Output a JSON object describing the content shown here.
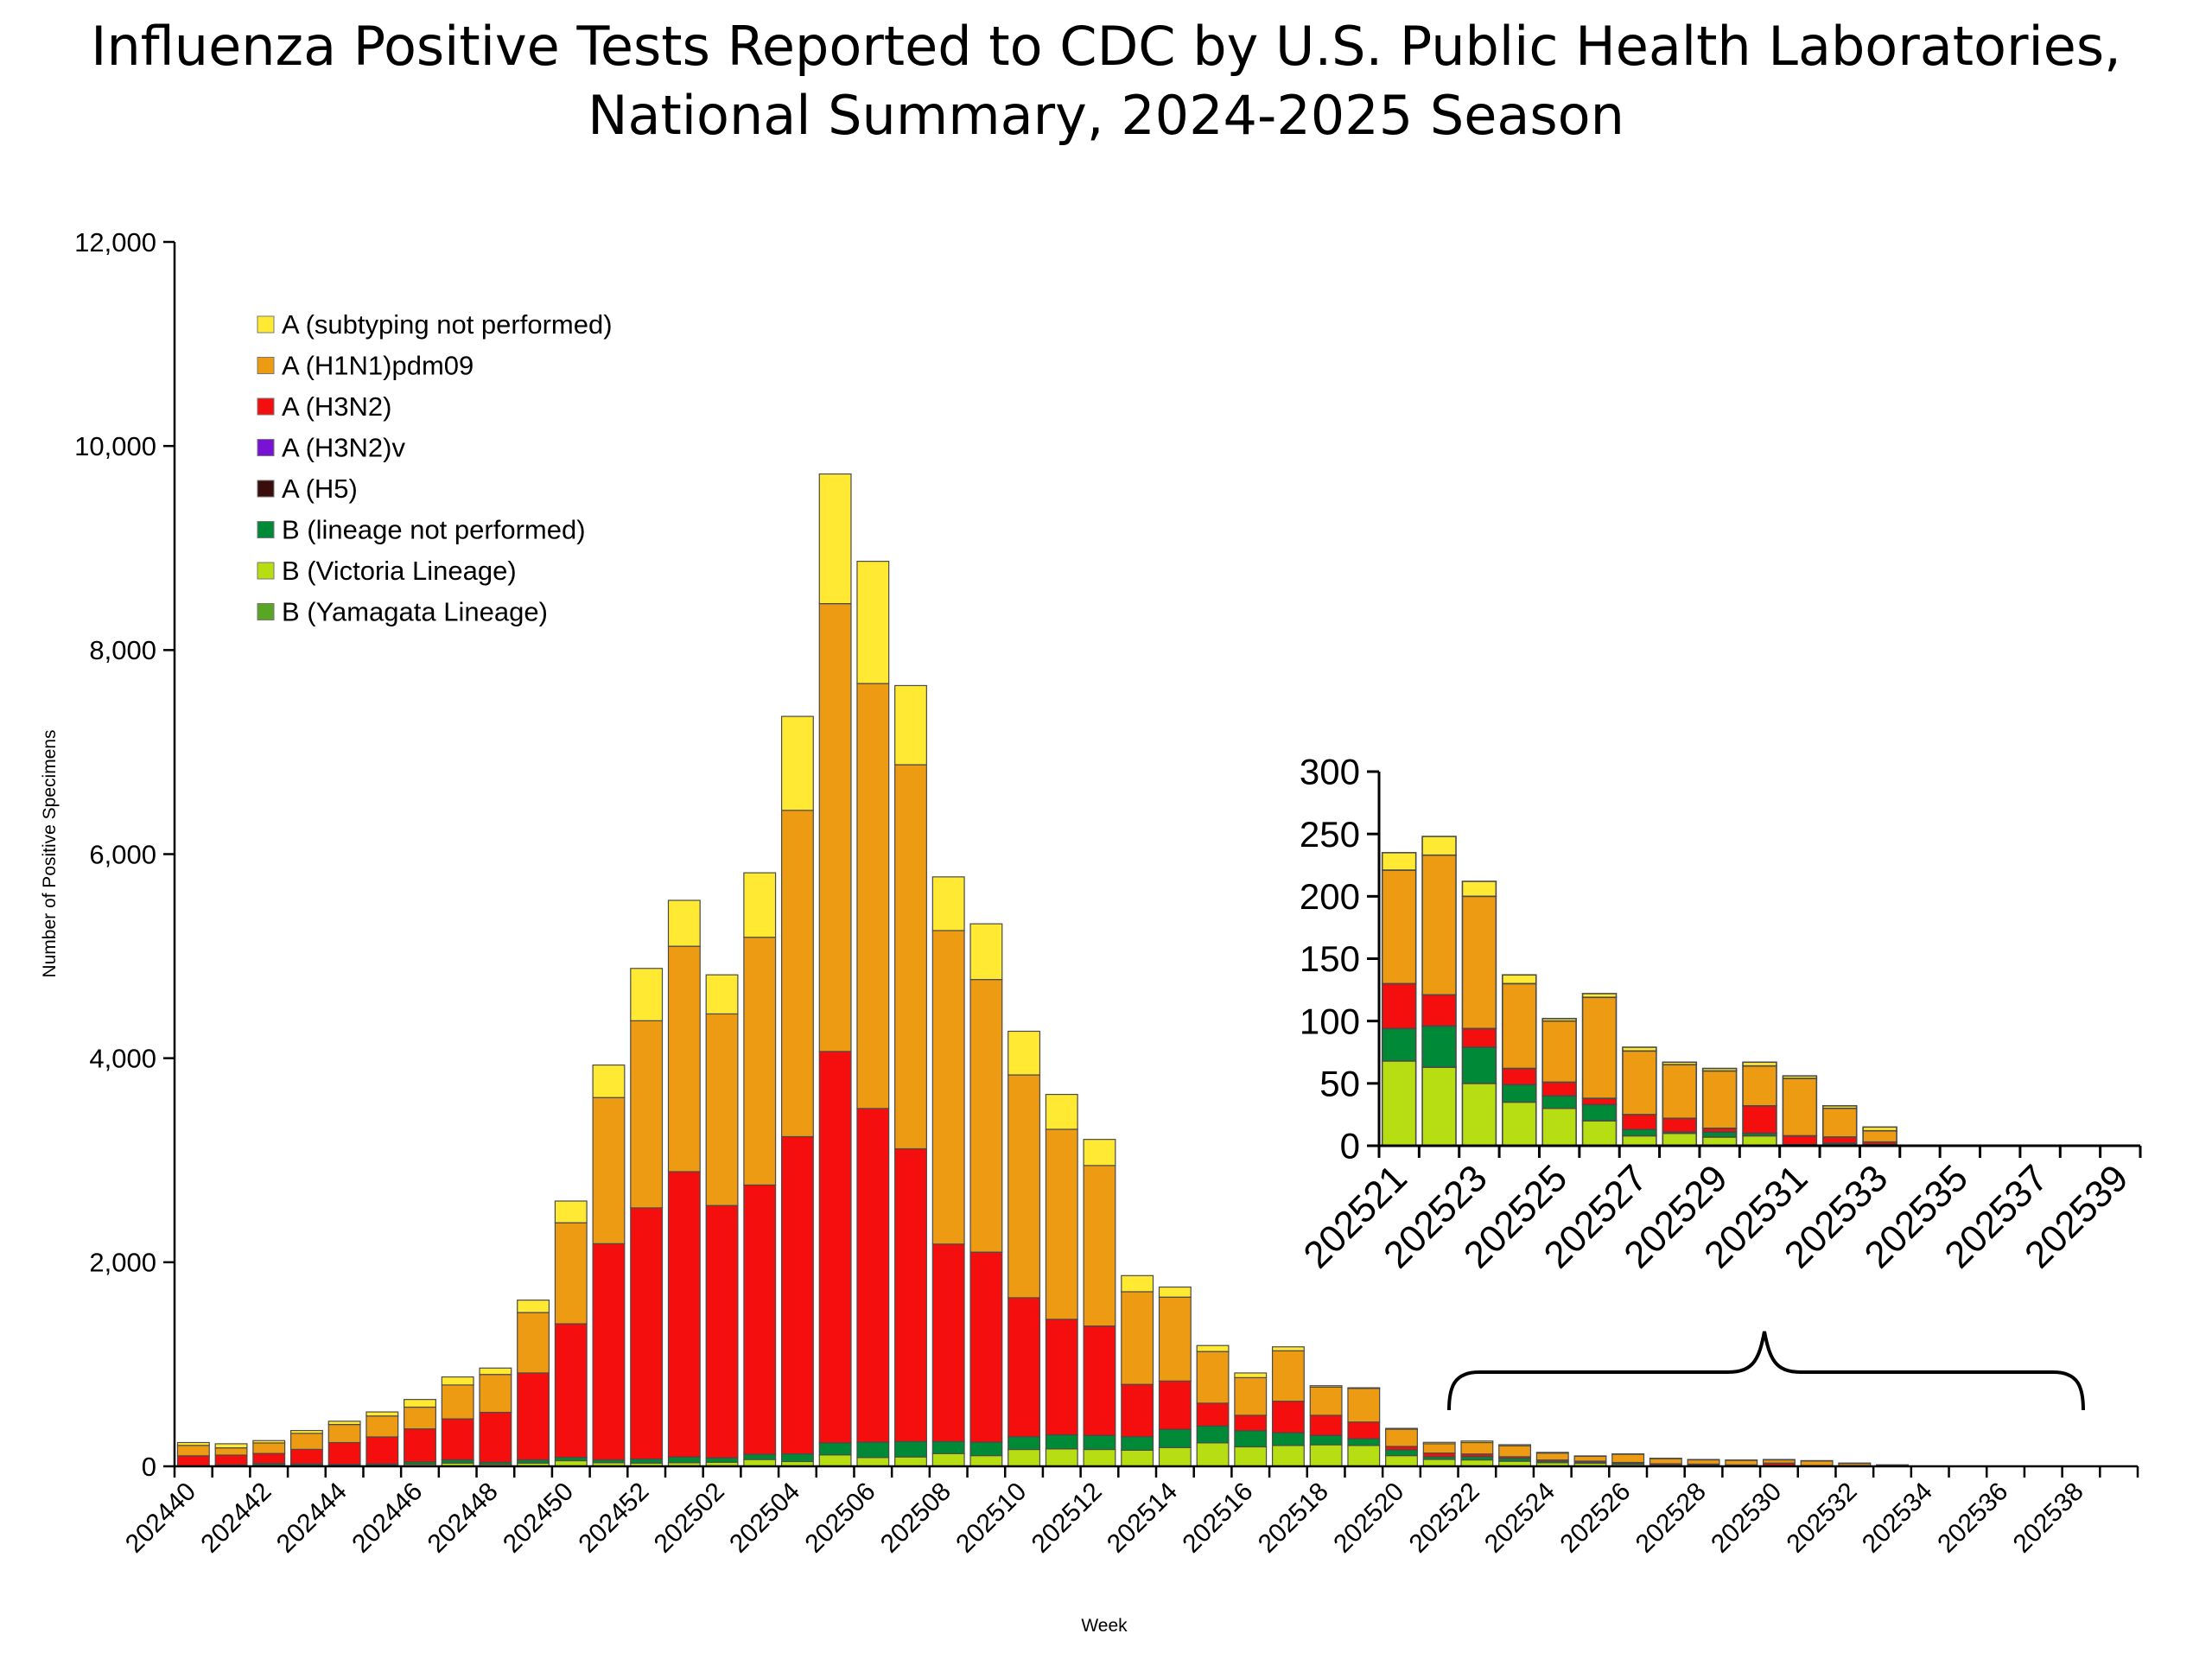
{
  "title": {
    "line1": "Influenza Positive Tests Reported to CDC by U.S. Public Health Laboratories,",
    "line2": "National Summary, 2024-2025 Season"
  },
  "colors": {
    "A (subtyping not performed)": "#ffe933",
    "A (H1N1)pdm09": "#ec9b13",
    "A (H3N2)": "#f50e0e",
    "A (H3N2)v": "#7a12d6",
    "A (H5)": "#3a0d0d",
    "B (lineage not performed)": "#008a37",
    "B (Victoria Lineage)": "#b7de12",
    "B (Yamagata Lineage)": "#58a624"
  },
  "legend": {
    "placement": "top-left",
    "entries": [
      "A (subtyping not performed)",
      "A (H1N1)pdm09",
      "A (H3N2)",
      "A (H3N2)v",
      "A (H5)",
      "B (lineage not performed)",
      "B (Victoria Lineage)",
      "B (Yamagata Lineage)"
    ]
  },
  "chart_data": [
    {
      "type": "bar",
      "stacked": true,
      "title": "Influenza Positive Tests Reported to CDC by U.S. Public Health Laboratories, National Summary, 2024-2025 Season",
      "xlabel": "Week",
      "ylabel": "Number of Positive Specimens",
      "ylim": [
        0,
        12000
      ],
      "yticks": [
        0,
        2000,
        4000,
        6000,
        8000,
        10000,
        12000
      ],
      "ytick_labels": [
        "0",
        "2,000",
        "4,000",
        "6,000",
        "8,000",
        "10,000",
        "12,000"
      ],
      "grid": false,
      "categories": [
        "202440",
        "202441",
        "202442",
        "202443",
        "202444",
        "202445",
        "202446",
        "202447",
        "202448",
        "202449",
        "202450",
        "202451",
        "202452",
        "202501",
        "202502",
        "202503",
        "202504",
        "202505",
        "202506",
        "202507",
        "202508",
        "202509",
        "202510",
        "202511",
        "202512",
        "202513",
        "202514",
        "202515",
        "202516",
        "202517",
        "202518",
        "202519",
        "202520",
        "202521",
        "202522",
        "202523",
        "202524",
        "202525",
        "202526",
        "202527",
        "202528",
        "202529",
        "202530",
        "202531",
        "202532",
        "202533",
        "202534",
        "202535",
        "202536",
        "202537",
        "202538",
        "202539"
      ],
      "xtick_labels": [
        "202440",
        "202442",
        "202444",
        "202446",
        "202448",
        "202450",
        "202452",
        "202502",
        "202504",
        "202506",
        "202508",
        "202510",
        "202512",
        "202514",
        "202516",
        "202518",
        "202520",
        "202522",
        "202524",
        "202526",
        "202528",
        "202530",
        "202532",
        "202534",
        "202536",
        "202538"
      ],
      "series": [
        {
          "name": "B (Victoria Lineage)",
          "values": [
            3,
            8,
            12,
            10,
            10,
            12,
            20,
            32,
            20,
            32,
            55,
            35,
            32,
            36,
            40,
            67,
            47,
            112,
            86,
            92,
            125,
            105,
            165,
            171,
            165,
            158,
            184,
            230,
            191,
            204,
            211,
            204,
            105,
            68,
            63,
            50,
            35,
            30,
            20,
            8,
            10,
            7,
            8,
            0,
            0,
            0,
            0,
            0,
            0,
            0,
            0,
            0
          ]
        },
        {
          "name": "B (Yamagata Lineage)",
          "values": [
            0,
            0,
            0,
            0,
            0,
            0,
            0,
            0,
            0,
            0,
            0,
            0,
            0,
            0,
            0,
            0,
            0,
            0,
            0,
            0,
            0,
            0,
            0,
            0,
            0,
            0,
            0,
            0,
            0,
            0,
            0,
            0,
            0,
            0,
            0,
            0,
            0,
            0,
            0,
            0,
            0,
            0,
            0,
            0,
            0,
            0,
            0,
            0,
            0,
            0,
            0,
            0
          ]
        },
        {
          "name": "B (lineage not performed)",
          "values": [
            2,
            7,
            16,
            14,
            10,
            12,
            23,
            31,
            20,
            31,
            32,
            28,
            39,
            55,
            43,
            51,
            75,
            118,
            151,
            151,
            118,
            132,
            125,
            138,
            138,
            132,
            178,
            165,
            158,
            125,
            92,
            66,
            56,
            26,
            33,
            29,
            14,
            10,
            13,
            5,
            1,
            4,
            2,
            1,
            2,
            1,
            0,
            0,
            0,
            0,
            0,
            0
          ]
        },
        {
          "name": "A (H5)",
          "values": [
            0,
            0,
            0,
            0,
            0,
            0,
            0,
            0,
            0,
            0,
            0,
            0,
            0,
            0,
            0,
            0,
            0,
            0,
            0,
            0,
            0,
            0,
            0,
            0,
            0,
            0,
            0,
            0,
            0,
            0,
            0,
            0,
            0,
            0,
            0,
            0,
            0,
            0,
            0,
            0,
            0,
            0,
            0,
            0,
            0,
            0,
            0,
            0,
            0,
            0,
            0,
            0
          ]
        },
        {
          "name": "A (H3N2)v",
          "values": [
            0,
            0,
            0,
            0,
            0,
            0,
            0,
            0,
            0,
            0,
            0,
            0,
            0,
            0,
            0,
            0,
            0,
            0,
            0,
            0,
            0,
            0,
            0,
            0,
            0,
            0,
            0,
            0,
            0,
            0,
            0,
            0,
            0,
            0,
            0,
            0,
            0,
            0,
            0,
            0,
            0,
            0,
            0,
            0,
            0,
            0,
            0,
            0,
            0,
            0,
            0,
            0
          ]
        },
        {
          "name": "A (H3N2)",
          "values": [
            98,
            95,
            98,
            142,
            213,
            264,
            324,
            402,
            489,
            852,
            1310,
            2119,
            2462,
            2797,
            2473,
            2639,
            3109,
            3836,
            3270,
            2869,
            1935,
            1862,
            1362,
            1132,
            1072,
            513,
            474,
            224,
            151,
            309,
            197,
            164,
            34,
            36,
            25,
            15,
            13,
            11,
            5,
            12,
            11,
            3,
            22,
            7,
            5,
            2,
            0,
            0,
            0,
            0,
            0,
            0
          ]
        },
        {
          "name": "A (H1N1)pdm09",
          "values": [
            102,
            71,
            103,
            157,
            177,
            205,
            213,
            332,
            371,
            592,
            990,
            1432,
            1834,
            2209,
            1878,
            2428,
            3198,
            4389,
            4165,
            3764,
            3073,
            2672,
            2184,
            1862,
            1573,
            908,
            822,
            506,
            369,
            494,
            276,
            329,
            169,
            91,
            112,
            106,
            68,
            49,
            81,
            51,
            43,
            46,
            32,
            46,
            23,
            9,
            0,
            0,
            0,
            0,
            0,
            0
          ]
        },
        {
          "name": "A (subtyping not performed)",
          "values": [
            28,
            40,
            23,
            28,
            32,
            40,
            75,
            79,
            63,
            122,
            213,
            319,
            513,
            450,
            383,
            632,
            921,
            1271,
            1198,
            776,
            526,
            546,
            428,
            342,
            256,
            158,
            99,
            59,
            46,
            39,
            14,
            7,
            8,
            14,
            15,
            12,
            7,
            2,
            3,
            3,
            2,
            2,
            3,
            2,
            2,
            3,
            0,
            0,
            0,
            0,
            0,
            0
          ]
        }
      ]
    },
    {
      "type": "bar",
      "stacked": true,
      "ylim": [
        0,
        300
      ],
      "yticks": [
        0,
        50,
        100,
        150,
        200,
        250,
        300
      ],
      "ytick_labels": [
        "0",
        "50",
        "100",
        "150",
        "200",
        "250",
        "300"
      ],
      "grid": false,
      "categories": [
        "202521",
        "202522",
        "202523",
        "202524",
        "202525",
        "202526",
        "202527",
        "202528",
        "202529",
        "202530",
        "202531",
        "202532",
        "202533",
        "202534",
        "202535",
        "202536",
        "202537",
        "202538",
        "202539"
      ],
      "xtick_labels": [
        "202521",
        "202523",
        "202525",
        "202527",
        "202529",
        "202531",
        "202533",
        "202535",
        "202537",
        "202539"
      ],
      "series": [
        {
          "name": "B (Victoria Lineage)",
          "values": [
            68,
            63,
            50,
            35,
            30,
            20,
            8,
            10,
            7,
            8,
            0,
            0,
            0,
            0,
            0,
            0,
            0,
            0,
            0
          ]
        },
        {
          "name": "B (Yamagata Lineage)",
          "values": [
            0,
            0,
            0,
            0,
            0,
            0,
            0,
            0,
            0,
            0,
            0,
            0,
            0,
            0,
            0,
            0,
            0,
            0,
            0
          ]
        },
        {
          "name": "B (lineage not performed)",
          "values": [
            26,
            33,
            29,
            14,
            10,
            13,
            5,
            1,
            4,
            2,
            1,
            2,
            1,
            0,
            0,
            0,
            0,
            0,
            0
          ]
        },
        {
          "name": "A (H5)",
          "values": [
            0,
            0,
            0,
            0,
            0,
            0,
            0,
            0,
            0,
            0,
            0,
            0,
            0,
            0,
            0,
            0,
            0,
            0,
            0
          ]
        },
        {
          "name": "A (H3N2)v",
          "values": [
            0,
            0,
            0,
            0,
            0,
            0,
            0,
            0,
            0,
            0,
            0,
            0,
            0,
            0,
            0,
            0,
            0,
            0,
            0
          ]
        },
        {
          "name": "A (H3N2)",
          "values": [
            36,
            25,
            15,
            13,
            11,
            5,
            12,
            11,
            3,
            22,
            7,
            5,
            2,
            0,
            0,
            0,
            0,
            0,
            0
          ]
        },
        {
          "name": "A (H1N1)pdm09",
          "values": [
            91,
            112,
            106,
            68,
            49,
            81,
            51,
            43,
            46,
            32,
            46,
            23,
            9,
            0,
            0,
            0,
            0,
            0,
            0
          ]
        },
        {
          "name": "A (subtyping not performed)",
          "values": [
            14,
            15,
            12,
            7,
            2,
            3,
            3,
            2,
            2,
            3,
            2,
            2,
            3,
            0,
            0,
            0,
            0,
            0,
            0
          ]
        }
      ]
    }
  ]
}
